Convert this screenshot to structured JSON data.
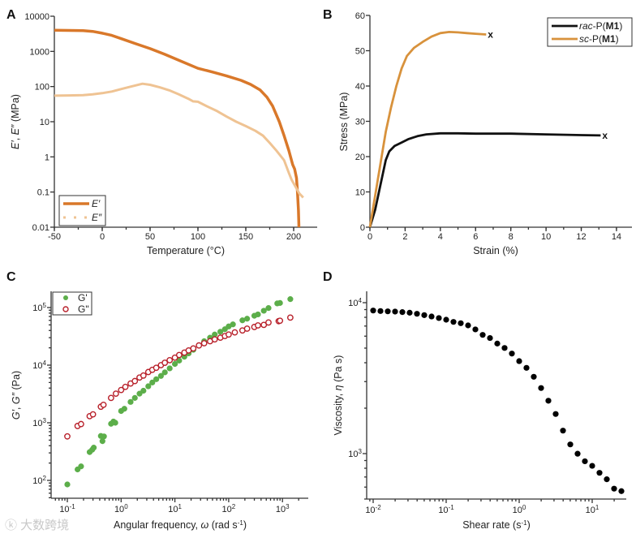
{
  "watermark": "大数跨境",
  "colors": {
    "E_storage": "#d9782a",
    "E_loss": "#efc393",
    "rac": "#111111",
    "sc": "#d8923c",
    "G_storage": "#5cae4a",
    "G_loss": "#b8202a",
    "eta": "#000000",
    "axis": "#333333"
  },
  "chart_data": [
    {
      "panel": "A",
      "type": "line",
      "xlabel": [
        {
          "text": "Temperature (°C)",
          "italic": false
        }
      ],
      "ylabel": [
        {
          "text": "E′",
          "italic": true
        },
        {
          "text": ", ",
          "italic": false
        },
        {
          "text": "E″",
          "italic": true
        },
        {
          "text": " (MPa)",
          "italic": false
        }
      ],
      "xlim": [
        -50,
        225
      ],
      "ylim": [
        0.01,
        10000
      ],
      "yscale": "log",
      "xticks": [
        -50,
        0,
        50,
        100,
        150,
        200
      ],
      "yticks": [
        {
          "v": 0.01,
          "label": "0.01"
        },
        {
          "v": 0.1,
          "label": "0.1"
        },
        {
          "v": 1,
          "label": "1"
        },
        {
          "v": 10,
          "label": "10"
        },
        {
          "v": 100,
          "label": "100"
        },
        {
          "v": 1000,
          "label": "1000"
        },
        {
          "v": 10000,
          "label": "10000"
        }
      ],
      "legend": {
        "position": "bottom-left",
        "entries": [
          "E′",
          "E″"
        ]
      },
      "series": [
        {
          "name": "E′",
          "x": [
            -50,
            -35,
            -20,
            -10,
            0,
            10,
            20,
            35,
            50,
            65,
            80,
            100,
            115,
            130,
            145,
            155,
            165,
            172,
            178,
            185,
            190,
            195,
            199,
            201,
            203,
            204,
            205,
            205.5
          ],
          "y": [
            4000,
            3950,
            3900,
            3700,
            3300,
            2850,
            2300,
            1650,
            1200,
            830,
            560,
            330,
            260,
            200,
            150,
            115,
            80,
            50,
            28,
            10,
            4,
            1.5,
            0.6,
            0.45,
            0.25,
            0.1,
            0.03,
            0.01
          ]
        },
        {
          "name": "E″",
          "x": [
            -50,
            -35,
            -20,
            -10,
            0,
            10,
            20,
            30,
            42,
            50,
            60,
            70,
            80,
            90,
            95,
            100,
            110,
            120,
            130,
            140,
            150,
            160,
            168,
            175,
            182,
            190,
            195,
            198,
            202,
            206,
            210
          ],
          "y": [
            55,
            56,
            57,
            60,
            65,
            72,
            85,
            100,
            120,
            112,
            95,
            78,
            60,
            45,
            38,
            37,
            27,
            20,
            14,
            10,
            7.5,
            5.5,
            4,
            2.5,
            1.5,
            0.8,
            0.35,
            0.22,
            0.14,
            0.09,
            0.07
          ]
        }
      ]
    },
    {
      "panel": "B",
      "type": "line",
      "xlabel": [
        {
          "text": "Strain (%)",
          "italic": false
        }
      ],
      "ylabel": [
        {
          "text": "Stress (MPa)",
          "italic": false
        }
      ],
      "xlim": [
        0,
        15
      ],
      "ylim": [
        0,
        60
      ],
      "xticks": [
        0,
        2,
        4,
        6,
        8,
        10,
        12,
        14
      ],
      "yticks": [
        0,
        10,
        20,
        30,
        40,
        50,
        60
      ],
      "legend": {
        "position": "top-right",
        "entries": [
          [
            {
              "text": "rac",
              "italic": true
            },
            {
              "text": "-P(",
              "italic": false
            },
            {
              "text": "M1",
              "bold": true
            },
            {
              "text": ")",
              "italic": false
            }
          ],
          [
            {
              "text": "sc",
              "italic": true
            },
            {
              "text": "-P(",
              "italic": false
            },
            {
              "text": "M1",
              "bold": true
            },
            {
              "text": ")",
              "italic": false
            }
          ]
        ]
      },
      "break_marker": "x",
      "series": [
        {
          "name": "rac-P(M1)",
          "x": [
            0,
            0.3,
            0.6,
            0.9,
            1.1,
            1.4,
            1.8,
            2.2,
            2.7,
            3.2,
            4,
            5,
            6,
            8,
            10,
            12,
            13.1
          ],
          "y": [
            0,
            5,
            12,
            19,
            21.5,
            23,
            24,
            25,
            25.8,
            26.3,
            26.6,
            26.6,
            26.5,
            26.5,
            26.3,
            26.1,
            26
          ]
        },
        {
          "name": "sc-P(M1)",
          "x": [
            0,
            0.3,
            0.6,
            0.9,
            1.2,
            1.5,
            1.8,
            2.1,
            2.5,
            3,
            3.5,
            4,
            4.5,
            5,
            5.5,
            6,
            6.6
          ],
          "y": [
            0,
            9,
            18,
            27,
            34,
            40,
            45,
            48.5,
            50.8,
            52.5,
            54,
            55,
            55.3,
            55.2,
            55,
            54.8,
            54.6
          ]
        }
      ]
    },
    {
      "panel": "C",
      "type": "scatter",
      "xlabel": [
        {
          "text": "Angular frequency, ",
          "italic": false
        },
        {
          "text": "ω",
          "italic": true
        },
        {
          "text": " (rad s",
          "italic": false
        },
        {
          "text": "-1",
          "sup": true
        },
        {
          "text": ")",
          "italic": false
        }
      ],
      "ylabel": [
        {
          "text": "G′",
          "italic": true
        },
        {
          "text": ", ",
          "italic": false
        },
        {
          "text": "G″",
          "italic": true
        },
        {
          "text": " (Pa)",
          "italic": false
        }
      ],
      "xscale": "log",
      "yscale": "log",
      "xlim": [
        0.05,
        2500
      ],
      "ylim": [
        50,
        200000
      ],
      "xticks": [
        {
          "v": 0.1,
          "base": "10",
          "exp": "-1"
        },
        {
          "v": 1,
          "base": "10",
          "exp": "0"
        },
        {
          "v": 10,
          "base": "10",
          "exp": "1"
        },
        {
          "v": 100,
          "base": "10",
          "exp": "2"
        },
        {
          "v": 1000,
          "base": "10",
          "exp": "3"
        }
      ],
      "yticks": [
        {
          "v": 100,
          "base": "10",
          "exp": "2"
        },
        {
          "v": 1000,
          "base": "10",
          "exp": "3"
        },
        {
          "v": 10000,
          "base": "10",
          "exp": "4"
        },
        {
          "v": 100000,
          "base": "10",
          "exp": "5"
        }
      ],
      "legend": {
        "position": "top-left",
        "entries": [
          "G'",
          "G\""
        ]
      },
      "series": [
        {
          "name": "G'",
          "marker": "filled-circle",
          "x": [
            0.1,
            0.155,
            0.18,
            0.26,
            0.29,
            0.31,
            0.42,
            0.45,
            0.48,
            0.65,
            0.72,
            0.78,
            1.0,
            1.15,
            1.5,
            1.8,
            2.2,
            2.6,
            3.2,
            3.8,
            4.5,
            5.5,
            6.5,
            8,
            10,
            12,
            15,
            18,
            22,
            28,
            35,
            45,
            55,
            70,
            85,
            100,
            120,
            180,
            220,
            300,
            350,
            450,
            550,
            800,
            900,
            1400
          ],
          "y": [
            85,
            155,
            175,
            310,
            340,
            370,
            590,
            480,
            580,
            960,
            1050,
            1000,
            1600,
            1750,
            2300,
            2700,
            3200,
            3600,
            4300,
            5000,
            5700,
            6500,
            7500,
            8800,
            10500,
            12000,
            14000,
            16000,
            18500,
            22000,
            26000,
            30000,
            34000,
            38000,
            42000,
            47000,
            51000,
            60000,
            64000,
            72000,
            76000,
            88000,
            98000,
            118000,
            120000,
            140000
          ]
        },
        {
          "name": "G\"",
          "marker": "open-circle",
          "x": [
            0.1,
            0.155,
            0.18,
            0.26,
            0.3,
            0.42,
            0.47,
            0.65,
            0.8,
            1.0,
            1.2,
            1.5,
            1.8,
            2.2,
            2.6,
            3.2,
            3.8,
            4.5,
            5.5,
            6.5,
            8,
            10,
            12,
            15,
            18,
            22,
            28,
            35,
            45,
            55,
            70,
            85,
            100,
            130,
            180,
            220,
            300,
            350,
            450,
            550,
            850,
            900,
            1400
          ],
          "y": [
            580,
            880,
            950,
            1300,
            1400,
            1900,
            2050,
            2700,
            3200,
            3700,
            4200,
            4800,
            5300,
            6100,
            6600,
            7600,
            8300,
            9000,
            10000,
            11000,
            12200,
            13500,
            15000,
            16500,
            18000,
            19500,
            22000,
            24000,
            26000,
            28000,
            30000,
            32000,
            34000,
            37000,
            40000,
            43000,
            46000,
            49000,
            50000,
            55000,
            58000,
            59000,
            67000
          ]
        }
      ]
    },
    {
      "panel": "D",
      "type": "scatter",
      "xlabel": [
        {
          "text": "Shear rate (s",
          "italic": false
        },
        {
          "text": "-1",
          "sup": true
        },
        {
          "text": ")",
          "italic": false
        }
      ],
      "ylabel": [
        {
          "text": "Viscosity, ",
          "italic": false
        },
        {
          "text": "η",
          "italic": true
        },
        {
          "text": " (Pa s)",
          "italic": false
        }
      ],
      "xscale": "log",
      "yscale": "log",
      "xlim": [
        0.008,
        35
      ],
      "ylim": [
        480,
        13000
      ],
      "xticks": [
        {
          "v": 0.01,
          "base": "10",
          "exp": "-2"
        },
        {
          "v": 0.1,
          "base": "10",
          "exp": "-1"
        },
        {
          "v": 1,
          "base": "10",
          "exp": "0"
        },
        {
          "v": 10,
          "base": "10",
          "exp": "1"
        }
      ],
      "yticks": [
        {
          "v": 1000,
          "base": "10",
          "exp": "3"
        },
        {
          "v": 10000,
          "base": "10",
          "exp": "4"
        }
      ],
      "series": [
        {
          "name": "Viscosity",
          "marker": "filled-circle",
          "x_start": 0.01,
          "points_per_decade": 10,
          "y": [
            8870,
            8800,
            8760,
            8730,
            8660,
            8580,
            8440,
            8270,
            8100,
            7910,
            7710,
            7460,
            7310,
            7070,
            6650,
            6120,
            5830,
            5360,
            5010,
            4600,
            4100,
            3700,
            3230,
            2720,
            2240,
            1830,
            1420,
            1150,
            998,
            890,
            830,
            746,
            676,
            586,
            564
          ]
        }
      ]
    }
  ]
}
